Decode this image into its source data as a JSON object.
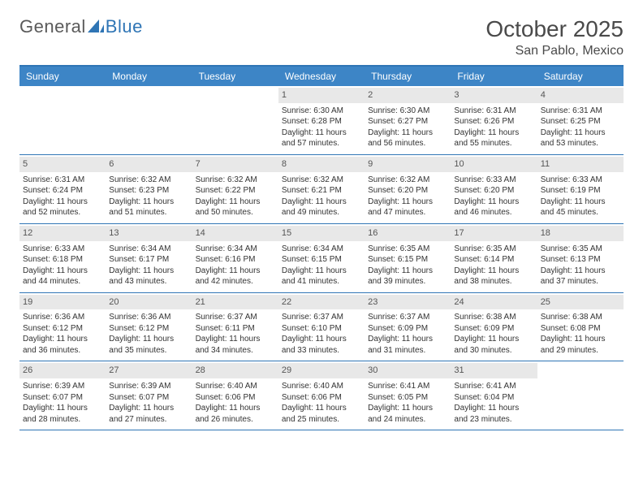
{
  "logo": {
    "text_general": "General",
    "text_blue": "Blue"
  },
  "header": {
    "month_title": "October 2025",
    "location": "San Pablo, Mexico"
  },
  "colors": {
    "header_bar": "#3d85c6",
    "rule": "#2f75b5",
    "daynum_bg": "#e8e8e8",
    "text": "#333333",
    "page_bg": "#ffffff"
  },
  "days_of_week": [
    "Sunday",
    "Monday",
    "Tuesday",
    "Wednesday",
    "Thursday",
    "Friday",
    "Saturday"
  ],
  "weeks": [
    [
      {
        "n": "",
        "sunrise": "",
        "sunset": "",
        "daylight": ""
      },
      {
        "n": "",
        "sunrise": "",
        "sunset": "",
        "daylight": ""
      },
      {
        "n": "",
        "sunrise": "",
        "sunset": "",
        "daylight": ""
      },
      {
        "n": "1",
        "sunrise": "Sunrise: 6:30 AM",
        "sunset": "Sunset: 6:28 PM",
        "daylight": "Daylight: 11 hours and 57 minutes."
      },
      {
        "n": "2",
        "sunrise": "Sunrise: 6:30 AM",
        "sunset": "Sunset: 6:27 PM",
        "daylight": "Daylight: 11 hours and 56 minutes."
      },
      {
        "n": "3",
        "sunrise": "Sunrise: 6:31 AM",
        "sunset": "Sunset: 6:26 PM",
        "daylight": "Daylight: 11 hours and 55 minutes."
      },
      {
        "n": "4",
        "sunrise": "Sunrise: 6:31 AM",
        "sunset": "Sunset: 6:25 PM",
        "daylight": "Daylight: 11 hours and 53 minutes."
      }
    ],
    [
      {
        "n": "5",
        "sunrise": "Sunrise: 6:31 AM",
        "sunset": "Sunset: 6:24 PM",
        "daylight": "Daylight: 11 hours and 52 minutes."
      },
      {
        "n": "6",
        "sunrise": "Sunrise: 6:32 AM",
        "sunset": "Sunset: 6:23 PM",
        "daylight": "Daylight: 11 hours and 51 minutes."
      },
      {
        "n": "7",
        "sunrise": "Sunrise: 6:32 AM",
        "sunset": "Sunset: 6:22 PM",
        "daylight": "Daylight: 11 hours and 50 minutes."
      },
      {
        "n": "8",
        "sunrise": "Sunrise: 6:32 AM",
        "sunset": "Sunset: 6:21 PM",
        "daylight": "Daylight: 11 hours and 49 minutes."
      },
      {
        "n": "9",
        "sunrise": "Sunrise: 6:32 AM",
        "sunset": "Sunset: 6:20 PM",
        "daylight": "Daylight: 11 hours and 47 minutes."
      },
      {
        "n": "10",
        "sunrise": "Sunrise: 6:33 AM",
        "sunset": "Sunset: 6:20 PM",
        "daylight": "Daylight: 11 hours and 46 minutes."
      },
      {
        "n": "11",
        "sunrise": "Sunrise: 6:33 AM",
        "sunset": "Sunset: 6:19 PM",
        "daylight": "Daylight: 11 hours and 45 minutes."
      }
    ],
    [
      {
        "n": "12",
        "sunrise": "Sunrise: 6:33 AM",
        "sunset": "Sunset: 6:18 PM",
        "daylight": "Daylight: 11 hours and 44 minutes."
      },
      {
        "n": "13",
        "sunrise": "Sunrise: 6:34 AM",
        "sunset": "Sunset: 6:17 PM",
        "daylight": "Daylight: 11 hours and 43 minutes."
      },
      {
        "n": "14",
        "sunrise": "Sunrise: 6:34 AM",
        "sunset": "Sunset: 6:16 PM",
        "daylight": "Daylight: 11 hours and 42 minutes."
      },
      {
        "n": "15",
        "sunrise": "Sunrise: 6:34 AM",
        "sunset": "Sunset: 6:15 PM",
        "daylight": "Daylight: 11 hours and 41 minutes."
      },
      {
        "n": "16",
        "sunrise": "Sunrise: 6:35 AM",
        "sunset": "Sunset: 6:15 PM",
        "daylight": "Daylight: 11 hours and 39 minutes."
      },
      {
        "n": "17",
        "sunrise": "Sunrise: 6:35 AM",
        "sunset": "Sunset: 6:14 PM",
        "daylight": "Daylight: 11 hours and 38 minutes."
      },
      {
        "n": "18",
        "sunrise": "Sunrise: 6:35 AM",
        "sunset": "Sunset: 6:13 PM",
        "daylight": "Daylight: 11 hours and 37 minutes."
      }
    ],
    [
      {
        "n": "19",
        "sunrise": "Sunrise: 6:36 AM",
        "sunset": "Sunset: 6:12 PM",
        "daylight": "Daylight: 11 hours and 36 minutes."
      },
      {
        "n": "20",
        "sunrise": "Sunrise: 6:36 AM",
        "sunset": "Sunset: 6:12 PM",
        "daylight": "Daylight: 11 hours and 35 minutes."
      },
      {
        "n": "21",
        "sunrise": "Sunrise: 6:37 AM",
        "sunset": "Sunset: 6:11 PM",
        "daylight": "Daylight: 11 hours and 34 minutes."
      },
      {
        "n": "22",
        "sunrise": "Sunrise: 6:37 AM",
        "sunset": "Sunset: 6:10 PM",
        "daylight": "Daylight: 11 hours and 33 minutes."
      },
      {
        "n": "23",
        "sunrise": "Sunrise: 6:37 AM",
        "sunset": "Sunset: 6:09 PM",
        "daylight": "Daylight: 11 hours and 31 minutes."
      },
      {
        "n": "24",
        "sunrise": "Sunrise: 6:38 AM",
        "sunset": "Sunset: 6:09 PM",
        "daylight": "Daylight: 11 hours and 30 minutes."
      },
      {
        "n": "25",
        "sunrise": "Sunrise: 6:38 AM",
        "sunset": "Sunset: 6:08 PM",
        "daylight": "Daylight: 11 hours and 29 minutes."
      }
    ],
    [
      {
        "n": "26",
        "sunrise": "Sunrise: 6:39 AM",
        "sunset": "Sunset: 6:07 PM",
        "daylight": "Daylight: 11 hours and 28 minutes."
      },
      {
        "n": "27",
        "sunrise": "Sunrise: 6:39 AM",
        "sunset": "Sunset: 6:07 PM",
        "daylight": "Daylight: 11 hours and 27 minutes."
      },
      {
        "n": "28",
        "sunrise": "Sunrise: 6:40 AM",
        "sunset": "Sunset: 6:06 PM",
        "daylight": "Daylight: 11 hours and 26 minutes."
      },
      {
        "n": "29",
        "sunrise": "Sunrise: 6:40 AM",
        "sunset": "Sunset: 6:06 PM",
        "daylight": "Daylight: 11 hours and 25 minutes."
      },
      {
        "n": "30",
        "sunrise": "Sunrise: 6:41 AM",
        "sunset": "Sunset: 6:05 PM",
        "daylight": "Daylight: 11 hours and 24 minutes."
      },
      {
        "n": "31",
        "sunrise": "Sunrise: 6:41 AM",
        "sunset": "Sunset: 6:04 PM",
        "daylight": "Daylight: 11 hours and 23 minutes."
      },
      {
        "n": "",
        "sunrise": "",
        "sunset": "",
        "daylight": ""
      }
    ]
  ]
}
